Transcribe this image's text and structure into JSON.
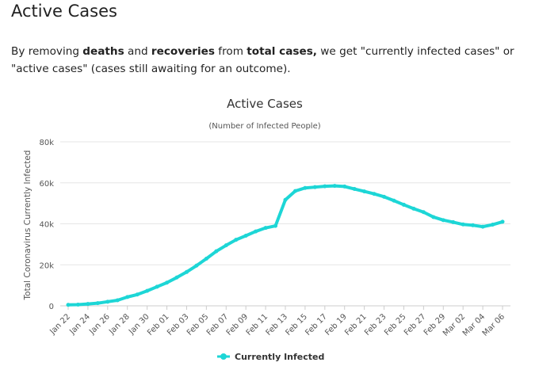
{
  "page": {
    "heading": "Active Cases",
    "intro": {
      "part1": "By removing ",
      "bold1": "deaths",
      "part2": " and ",
      "bold2": "recoveries",
      "part3": " from ",
      "bold3": "total cases,",
      "part4": " we get \"currently infected cases\" or \"active cases\" (cases still awaiting for an outcome)."
    }
  },
  "colors": {
    "series": "#1dd6d6",
    "grid": "#e6e6e6",
    "axis": "#cccccc"
  },
  "chart_data": {
    "type": "line",
    "title": "Active Cases",
    "subtitle": "(Number of Infected People)",
    "xlabel": "",
    "ylabel": "Total Coronavirus Currently Infected",
    "ylim": [
      0,
      80000
    ],
    "yticks": [
      0,
      20000,
      40000,
      60000,
      80000
    ],
    "ytick_labels": [
      "0",
      "20k",
      "40k",
      "60k",
      "80k"
    ],
    "grid": true,
    "legend": "bottom-center",
    "x": [
      "Jan 22",
      "Jan 23",
      "Jan 24",
      "Jan 25",
      "Jan 26",
      "Jan 27",
      "Jan 28",
      "Jan 29",
      "Jan 30",
      "Jan 31",
      "Feb 01",
      "Feb 02",
      "Feb 03",
      "Feb 04",
      "Feb 05",
      "Feb 06",
      "Feb 07",
      "Feb 08",
      "Feb 09",
      "Feb 10",
      "Feb 11",
      "Feb 12",
      "Feb 13",
      "Feb 14",
      "Feb 15",
      "Feb 16",
      "Feb 17",
      "Feb 18",
      "Feb 19",
      "Feb 20",
      "Feb 21",
      "Feb 22",
      "Feb 23",
      "Feb 24",
      "Feb 25",
      "Feb 26",
      "Feb 27",
      "Feb 28",
      "Feb 29",
      "Mar 01",
      "Mar 02",
      "Mar 03",
      "Mar 04",
      "Mar 05",
      "Mar 06"
    ],
    "xtick_labels": [
      "Jan 22",
      "Jan 24",
      "Jan 26",
      "Jan 28",
      "Jan 30",
      "Feb 01",
      "Feb 03",
      "Feb 05",
      "Feb 07",
      "Feb 09",
      "Feb 11",
      "Feb 13",
      "Feb 15",
      "Feb 17",
      "Feb 19",
      "Feb 21",
      "Feb 23",
      "Feb 25",
      "Feb 27",
      "Feb 29",
      "Mar 02",
      "Mar 04",
      "Mar 06"
    ],
    "series": [
      {
        "name": "Currently Infected",
        "values": [
          500,
          600,
          900,
          1300,
          2000,
          2700,
          4300,
          5500,
          7300,
          9300,
          11300,
          13800,
          16500,
          19600,
          23000,
          26600,
          29500,
          32200,
          34200,
          36300,
          38000,
          39000,
          51700,
          56000,
          57500,
          57900,
          58300,
          58500,
          58200,
          57000,
          55800,
          54600,
          53200,
          51300,
          49300,
          47400,
          45700,
          43300,
          41800,
          40800,
          39700,
          39300,
          38600,
          39600,
          41000
        ]
      }
    ]
  }
}
